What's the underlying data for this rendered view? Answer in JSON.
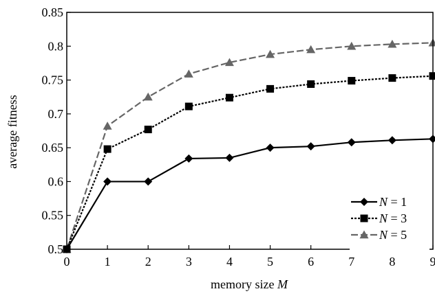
{
  "chart_data": {
    "type": "line",
    "xlabel": "memory size",
    "xlabel_var": "M",
    "ylabel": "average fitness",
    "x": [
      0,
      1,
      2,
      3,
      4,
      5,
      6,
      7,
      8,
      9
    ],
    "xlim": [
      0,
      9
    ],
    "ylim": [
      0.5,
      0.85
    ],
    "x_ticks": [
      "0",
      "1",
      "2",
      "3",
      "4",
      "5",
      "6",
      "7",
      "8",
      "9"
    ],
    "y_ticks": [
      "0.5",
      "0.55",
      "0.6",
      "0.65",
      "0.7",
      "0.75",
      "0.8",
      "0.85"
    ],
    "grid": false,
    "legend_position": "bottom-right",
    "series": [
      {
        "name": "N = 1",
        "name_var": "N",
        "name_rest": " = 1",
        "values": [
          0.5,
          0.6,
          0.6,
          0.634,
          0.635,
          0.65,
          0.652,
          0.658,
          0.661,
          0.663
        ],
        "color": "#000000",
        "line_style": "solid",
        "marker": "diamond"
      },
      {
        "name": "N = 3",
        "name_var": "N",
        "name_rest": " = 3",
        "values": [
          0.5,
          0.648,
          0.677,
          0.711,
          0.724,
          0.737,
          0.744,
          0.749,
          0.753,
          0.756
        ],
        "color": "#000000",
        "line_style": "dotted",
        "marker": "square"
      },
      {
        "name": "N = 5",
        "name_var": "N",
        "name_rest": " = 5",
        "values": [
          0.5,
          0.682,
          0.725,
          0.759,
          0.776,
          0.788,
          0.795,
          0.8,
          0.803,
          0.805
        ],
        "color": "#666666",
        "line_style": "dashed",
        "marker": "triangle"
      }
    ]
  }
}
